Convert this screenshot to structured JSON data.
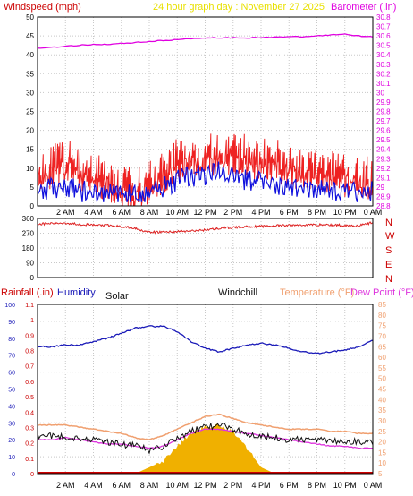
{
  "header": {
    "wind_title": "Windspeed (mph)",
    "graph_title": "24 hour graph day : November 27 2025",
    "baro_title": "Barometer (.in)"
  },
  "x_axis": {
    "tick_labels": [
      "2 AM",
      "4 AM",
      "6 AM",
      "8 AM",
      "10 AM",
      "12 PM",
      "2 PM",
      "4 PM",
      "6 PM",
      "8 PM",
      "10 PM",
      "0 AM"
    ]
  },
  "wind_panel": {
    "y_ticks": [
      "0",
      "5",
      "10",
      "15",
      "20",
      "25",
      "30",
      "35",
      "40",
      "45",
      "50"
    ],
    "baro_ticks": [
      "28.8",
      "28.9",
      "29",
      "29.1",
      "29.2",
      "29.3",
      "29.4",
      "29.5",
      "29.6",
      "29.7",
      "29.8",
      "29.9",
      "30",
      "30.1",
      "30.2",
      "30.3",
      "30.4",
      "30.5",
      "30.6",
      "30.7",
      "30.8"
    ]
  },
  "direction_panel": {
    "y_ticks": [
      "0",
      "90",
      "180",
      "270",
      "360"
    ],
    "compass_labels": [
      "N",
      "W",
      "S",
      "E",
      "N"
    ]
  },
  "temp_panel": {
    "titles": {
      "rainfall": "Rainfall (.in)",
      "humidity": "Humidity",
      "solar": "Solar",
      "windchill": "Windchill",
      "temperature": "Temperature (°F)",
      "dewpoint": "Dew Point (°F)"
    },
    "humidity_ticks": [
      "0",
      "10",
      "20",
      "30",
      "40",
      "50",
      "60",
      "70",
      "80",
      "90",
      "100"
    ],
    "rain_ticks": [
      "0",
      "0.1",
      "0.2",
      "0.3",
      "0.4",
      "0.5",
      "0.6",
      "0.7",
      "0.8",
      "0.9",
      "1",
      "1.1"
    ],
    "temp_ticks": [
      "5",
      "10",
      "15",
      "20",
      "25",
      "30",
      "35",
      "40",
      "45",
      "50",
      "55",
      "60",
      "65",
      "70",
      "75",
      "80",
      "85"
    ]
  },
  "colors": {
    "wind_title": "#cc0000",
    "graph_title": "#e8e000",
    "barometer": "#e000e0",
    "gust": "#ee2222",
    "avg_wind": "#1010dd",
    "direction": "#dd2222",
    "compass": "#cc0000",
    "rainfall": "#cc0000",
    "humidity": "#1a1ab8",
    "temperature": "#f0a070",
    "dewpoint": "#dd33dd",
    "windchill": "#111111",
    "solar": "#f0b000",
    "grid": "#c8c8c8",
    "axis_text": "#000000"
  },
  "chart_data": [
    {
      "type": "line",
      "panel": "wind",
      "x": [
        "0 AM",
        "1 AM",
        "2 AM",
        "3 AM",
        "4 AM",
        "5 AM",
        "6 AM",
        "7 AM",
        "8 AM",
        "9 AM",
        "10 AM",
        "11 AM",
        "12 PM",
        "1 PM",
        "2 PM",
        "3 PM",
        "4 PM",
        "5 PM",
        "6 PM",
        "7 PM",
        "8 PM",
        "9 PM",
        "10 PM",
        "11 PM",
        "0 AM"
      ],
      "ylim": [
        0,
        50
      ],
      "y2lim": [
        28.8,
        30.8
      ],
      "series": [
        {
          "name": "Windspeed (mph)",
          "axis": "left",
          "values": [
            10,
            11,
            13,
            11,
            10,
            8,
            6,
            5,
            7,
            10,
            13,
            14,
            14,
            15,
            15,
            14,
            13,
            13,
            12,
            11,
            11,
            10,
            9,
            8,
            9
          ]
        },
        {
          "name": "Barometer (.in)",
          "axis": "right",
          "values": [
            30.47,
            30.48,
            30.49,
            30.5,
            30.51,
            30.51,
            30.52,
            30.53,
            30.54,
            30.55,
            30.56,
            30.57,
            30.58,
            30.58,
            30.58,
            30.58,
            30.58,
            30.59,
            30.59,
            30.59,
            30.6,
            30.61,
            30.62,
            30.6,
            30.59
          ]
        }
      ],
      "extra_series": [
        {
          "axis": "left",
          "values": [
            4,
            5,
            5,
            4,
            3,
            3,
            3,
            3,
            3,
            5,
            7,
            8,
            8,
            9,
            8,
            7,
            6,
            6,
            5,
            5,
            5,
            4,
            4,
            3,
            4
          ]
        }
      ]
    },
    {
      "type": "scatter",
      "panel": "direction",
      "x": [
        "0 AM",
        "1 AM",
        "2 AM",
        "3 AM",
        "4 AM",
        "5 AM",
        "6 AM",
        "7 AM",
        "8 AM",
        "9 AM",
        "10 AM",
        "11 AM",
        "12 PM",
        "1 PM",
        "2 PM",
        "3 PM",
        "4 PM",
        "5 PM",
        "6 PM",
        "7 PM",
        "8 PM",
        "9 PM",
        "10 PM",
        "11 PM",
        "0 AM"
      ],
      "ylim": [
        0,
        360
      ],
      "values": [
        325,
        330,
        332,
        325,
        320,
        318,
        310,
        300,
        275,
        278,
        280,
        283,
        290,
        300,
        305,
        310,
        312,
        315,
        318,
        320,
        322,
        320,
        318,
        316,
        335
      ]
    },
    {
      "type": "line",
      "panel": "temperature",
      "x": [
        "0 AM",
        "1 AM",
        "2 AM",
        "3 AM",
        "4 AM",
        "5 AM",
        "6 AM",
        "7 AM",
        "8 AM",
        "9 AM",
        "10 AM",
        "11 AM",
        "12 PM",
        "1 PM",
        "2 PM",
        "3 PM",
        "4 PM",
        "5 PM",
        "6 PM",
        "7 PM",
        "8 PM",
        "9 PM",
        "10 PM",
        "11 PM",
        "0 AM"
      ],
      "humidity_lim": [
        0,
        100
      ],
      "rain_lim": [
        0,
        1.1
      ],
      "temp_lim": [
        5,
        85
      ],
      "series": [
        {
          "name": "Humidity",
          "axis": "humidity",
          "values": [
            75,
            75,
            76,
            76,
            78,
            80,
            83,
            86,
            87,
            87,
            84,
            78,
            74,
            72,
            74,
            76,
            77,
            76,
            74,
            72,
            71,
            72,
            73,
            75,
            79
          ]
        },
        {
          "name": "Temperature (°F)",
          "axis": "temperature",
          "values": [
            28,
            28,
            28,
            27,
            26,
            25,
            24,
            22,
            21,
            23,
            26,
            29,
            32,
            33,
            31,
            29,
            28,
            27,
            26,
            26,
            26,
            25,
            25,
            24,
            24
          ]
        },
        {
          "name": "Dew Point (°F)",
          "axis": "temperature",
          "values": [
            21,
            21,
            22,
            21,
            20,
            19,
            19,
            18,
            17,
            18,
            21,
            24,
            26,
            26,
            25,
            24,
            23,
            22,
            21,
            20,
            19,
            18,
            18,
            17,
            17
          ]
        },
        {
          "name": "Windchill",
          "axis": "temperature",
          "values": [
            23,
            23,
            22,
            22,
            21,
            20,
            19,
            18,
            16,
            18,
            22,
            25,
            27,
            28,
            26,
            24,
            23,
            22,
            21,
            21,
            21,
            21,
            20,
            20,
            20
          ]
        },
        {
          "name": "Solar",
          "axis": "temperature",
          "values": [
            5,
            5,
            5,
            5,
            5,
            5,
            5,
            5,
            8,
            11,
            18,
            24,
            27,
            28,
            25,
            17,
            8,
            5,
            5,
            5,
            5,
            5,
            5,
            5,
            5
          ]
        },
        {
          "name": "Rainfall (.in)",
          "axis": "rain",
          "values": [
            0,
            0,
            0,
            0,
            0,
            0,
            0,
            0,
            0,
            0,
            0,
            0,
            0,
            0,
            0,
            0,
            0,
            0,
            0,
            0,
            0,
            0,
            0,
            0,
            0
          ]
        }
      ]
    }
  ]
}
